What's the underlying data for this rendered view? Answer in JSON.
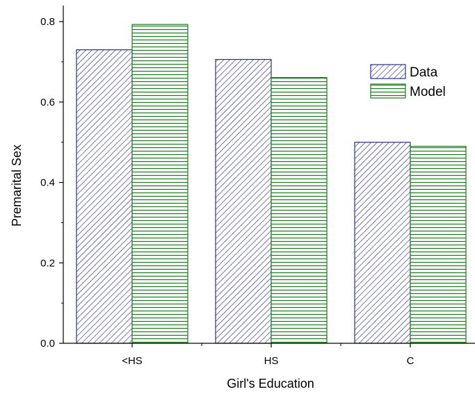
{
  "chart_data": {
    "type": "bar",
    "title": "",
    "xlabel": "Girl's Education",
    "ylabel": "Premarital Sex",
    "categories": [
      "<HS",
      "HS",
      "C"
    ],
    "ylim": [
      0.0,
      0.84
    ],
    "yticks": [
      0.0,
      0.2,
      0.4,
      0.6,
      0.8
    ],
    "ytick_labels": [
      "0.0",
      "0.2",
      "0.4",
      "0.6",
      "0.8"
    ],
    "grid": false,
    "legend_position": "top-right",
    "series": [
      {
        "name": "Data",
        "values": [
          0.73,
          0.706,
          0.5
        ],
        "color": "#2e2e8c",
        "pattern": "diagonal-hatch"
      },
      {
        "name": "Model",
        "values": [
          0.793,
          0.661,
          0.49
        ],
        "color": "#1a7a1a",
        "pattern": "horizontal-lines"
      }
    ]
  }
}
